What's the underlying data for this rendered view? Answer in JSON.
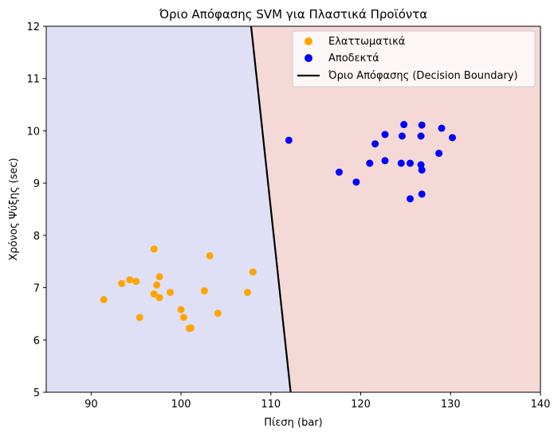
{
  "chart_data": {
    "type": "scatter",
    "title": "Όριο Απόφασης SVM για Πλαστικά Προϊόντα",
    "xlabel": "Πίεση (bar)",
    "ylabel": "Χρόνος Ψύξης (sec)",
    "xlim": [
      85,
      140
    ],
    "ylim": [
      5,
      12
    ],
    "xticks": [
      90,
      100,
      110,
      120,
      130,
      140
    ],
    "yticks": [
      5,
      6,
      7,
      8,
      9,
      10,
      11,
      12
    ],
    "grid": false,
    "legend_position": "top-right",
    "regions": {
      "left_color": "#dfe0f6",
      "right_color": "#f5d9d6"
    },
    "series": [
      {
        "name": "Ελαττωματικά",
        "color": "#ffa500",
        "points": [
          [
            91.4,
            6.77
          ],
          [
            93.4,
            7.08
          ],
          [
            94.3,
            7.15
          ],
          [
            95.0,
            7.12
          ],
          [
            95.4,
            6.43
          ],
          [
            97.0,
            7.74
          ],
          [
            97.0,
            6.88
          ],
          [
            97.3,
            7.05
          ],
          [
            97.6,
            7.21
          ],
          [
            97.6,
            6.81
          ],
          [
            98.8,
            6.91
          ],
          [
            100.0,
            6.58
          ],
          [
            100.3,
            6.43
          ],
          [
            100.9,
            6.22
          ],
          [
            101.1,
            6.23
          ],
          [
            102.6,
            6.94
          ],
          [
            103.2,
            7.61
          ],
          [
            104.1,
            6.51
          ],
          [
            107.4,
            6.91
          ],
          [
            108.0,
            7.3
          ]
        ]
      },
      {
        "name": "Αποδεκτά",
        "color": "#0000ff",
        "points": [
          [
            112.0,
            9.82
          ],
          [
            117.6,
            9.21
          ],
          [
            119.5,
            9.02
          ],
          [
            121.0,
            9.38
          ],
          [
            121.6,
            9.75
          ],
          [
            122.7,
            9.93
          ],
          [
            122.7,
            9.43
          ],
          [
            124.5,
            9.38
          ],
          [
            124.6,
            9.9
          ],
          [
            124.8,
            10.12
          ],
          [
            125.5,
            9.38
          ],
          [
            125.5,
            8.7
          ],
          [
            126.7,
            9.9
          ],
          [
            126.7,
            9.35
          ],
          [
            126.8,
            10.11
          ],
          [
            126.8,
            9.25
          ],
          [
            126.8,
            8.79
          ],
          [
            128.7,
            9.57
          ],
          [
            129.0,
            10.05
          ],
          [
            130.2,
            9.87
          ]
        ]
      }
    ],
    "decision_boundary": {
      "name": "Όριο Απόφασης (Decision Boundary)",
      "color": "#000000",
      "points": [
        [
          107.8,
          12.0
        ],
        [
          112.2,
          5.0
        ]
      ]
    }
  }
}
